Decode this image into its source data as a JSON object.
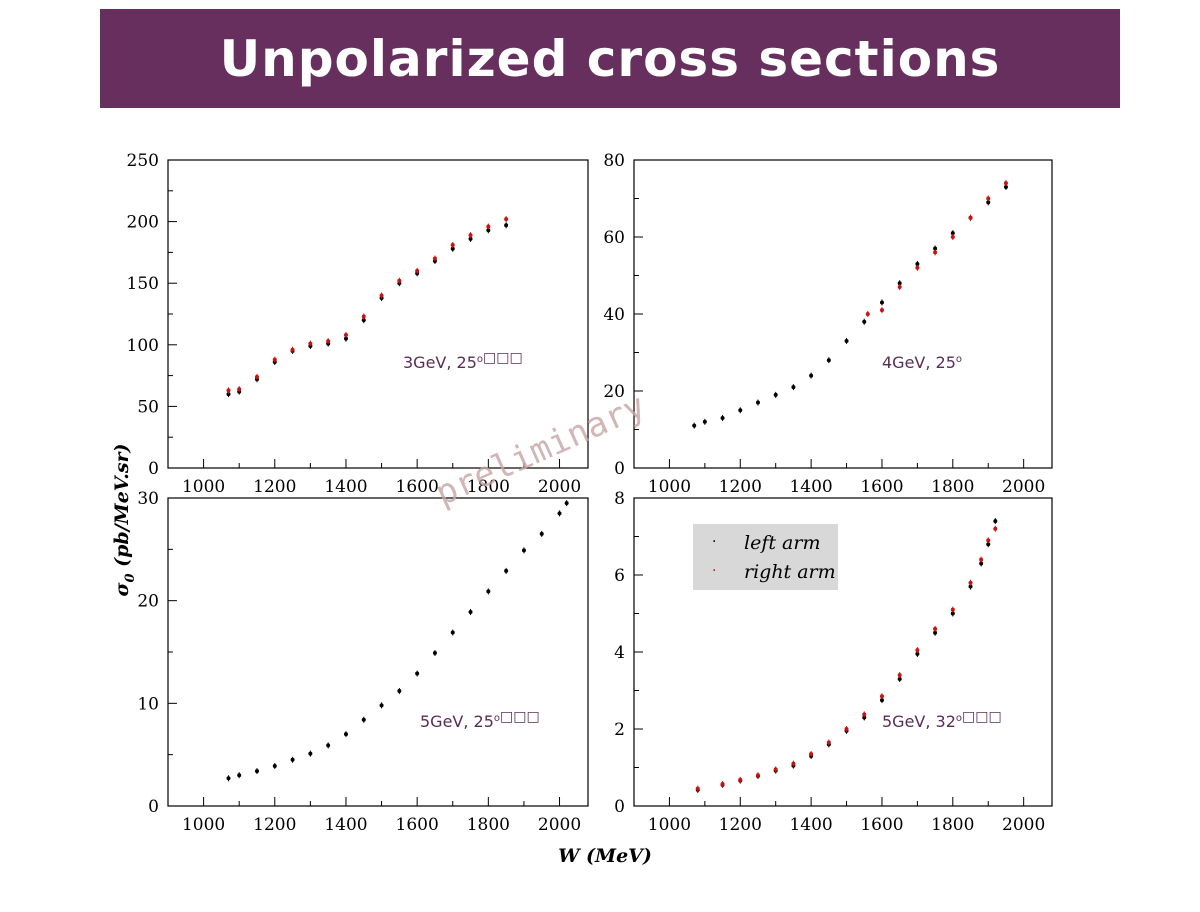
{
  "title": "Unpolarized cross sections",
  "watermark": "preliminary",
  "colors": {
    "title_bg": "#672f5e",
    "left_arm": "#000000",
    "right_arm": "#cc1111",
    "panel_label": "#5a2c57",
    "legend_bg": "#d8d8d8"
  },
  "legend": {
    "left": "left arm",
    "right": "right arm"
  },
  "axis_labels": {
    "x": "W (MeV)",
    "y_main": "σ",
    "y_sub": "0",
    "y_rest": " (pb/MeV.sr)"
  },
  "chart_data": [
    {
      "type": "scatter",
      "panel_label": {
        "main": "3GeV, 25",
        "sup": "o",
        "tail": "□□□"
      },
      "xlim": [
        900,
        2080
      ],
      "ylim": [
        0,
        250
      ],
      "x_ticks": [
        "1000",
        "1200",
        "1400",
        "1600",
        "1800",
        "2000"
      ],
      "y_ticks": [
        "0",
        "50",
        "100",
        "150",
        "200",
        "250"
      ],
      "series": [
        {
          "name": "left arm",
          "x": [
            1070,
            1100,
            1150,
            1200,
            1250,
            1300,
            1350,
            1400,
            1450,
            1500,
            1550,
            1600,
            1650,
            1700,
            1750,
            1800,
            1850
          ],
          "y": [
            60,
            62,
            72,
            86,
            95,
            99,
            101,
            105,
            120,
            138,
            150,
            158,
            168,
            178,
            186,
            193,
            197
          ]
        },
        {
          "name": "right arm",
          "x": [
            1070,
            1100,
            1150,
            1200,
            1250,
            1300,
            1350,
            1400,
            1450,
            1500,
            1550,
            1600,
            1650,
            1700,
            1750,
            1800,
            1850
          ],
          "y": [
            63,
            64,
            74,
            88,
            96,
            101,
            103,
            108,
            123,
            140,
            152,
            160,
            170,
            181,
            189,
            196,
            202
          ]
        }
      ]
    },
    {
      "type": "scatter",
      "panel_label": {
        "main": "4GeV, 25",
        "sup": "o",
        "tail": ""
      },
      "xlim": [
        900,
        2080
      ],
      "ylim": [
        0,
        80
      ],
      "x_ticks": [
        "1000",
        "1200",
        "1400",
        "1600",
        "1800",
        "2000"
      ],
      "y_ticks": [
        "0",
        "20",
        "40",
        "60",
        "80"
      ],
      "series": [
        {
          "name": "left arm",
          "x": [
            1070,
            1100,
            1150,
            1200,
            1250,
            1300,
            1350,
            1400,
            1450,
            1500,
            1550,
            1600,
            1650,
            1700,
            1750,
            1800,
            1850,
            1900,
            1950
          ],
          "y": [
            11,
            12,
            13,
            15,
            17,
            19,
            21,
            24,
            28,
            33,
            38,
            43,
            48,
            53,
            57,
            61,
            65,
            69,
            73
          ]
        },
        {
          "name": "right arm",
          "x": [
            1560,
            1600,
            1650,
            1700,
            1750,
            1800,
            1850,
            1900,
            1950
          ],
          "y": [
            40,
            41,
            47,
            52,
            56,
            60,
            65,
            70,
            74
          ]
        }
      ]
    },
    {
      "type": "scatter",
      "panel_label": {
        "main": "5GeV, 25",
        "sup": "o",
        "tail": "□□□"
      },
      "xlim": [
        900,
        2080
      ],
      "ylim": [
        0,
        30
      ],
      "x_ticks": [
        "1000",
        "1200",
        "1400",
        "1600",
        "1800",
        "2000"
      ],
      "y_ticks": [
        "0",
        "10",
        "20",
        "30"
      ],
      "series": [
        {
          "name": "left arm",
          "x": [
            1070,
            1100,
            1150,
            1200,
            1250,
            1300,
            1350,
            1400,
            1450,
            1500,
            1550,
            1600,
            1650,
            1700,
            1750,
            1800,
            1850,
            1900,
            1950,
            2000,
            2020
          ],
          "y": [
            2.7,
            3.0,
            3.4,
            3.9,
            4.5,
            5.1,
            5.9,
            7.0,
            8.4,
            9.8,
            11.2,
            12.9,
            14.9,
            16.9,
            18.9,
            20.9,
            22.9,
            24.9,
            26.5,
            28.5,
            29.5
          ]
        }
      ]
    },
    {
      "type": "scatter",
      "panel_label": {
        "main": "5GeV, 32",
        "sup": "o",
        "tail": "□□□"
      },
      "xlim": [
        900,
        2080
      ],
      "ylim": [
        0,
        8
      ],
      "x_ticks": [
        "1000",
        "1200",
        "1400",
        "1600",
        "1800",
        "2000"
      ],
      "y_ticks": [
        "0",
        "2",
        "4",
        "6",
        "8"
      ],
      "legend_position": "top-left",
      "series": [
        {
          "name": "left arm",
          "x": [
            1080,
            1150,
            1200,
            1250,
            1300,
            1350,
            1400,
            1450,
            1500,
            1550,
            1600,
            1650,
            1700,
            1750,
            1800,
            1850,
            1880,
            1900,
            1920
          ],
          "y": [
            0.42,
            0.55,
            0.66,
            0.78,
            0.92,
            1.05,
            1.3,
            1.6,
            1.95,
            2.3,
            2.75,
            3.3,
            3.95,
            4.5,
            5.0,
            5.7,
            6.3,
            6.8,
            7.4
          ]
        },
        {
          "name": "right arm",
          "x": [
            1080,
            1150,
            1200,
            1250,
            1300,
            1350,
            1400,
            1450,
            1500,
            1550,
            1600,
            1650,
            1700,
            1750,
            1800,
            1850,
            1880,
            1900,
            1920
          ],
          "y": [
            0.45,
            0.57,
            0.68,
            0.8,
            0.95,
            1.1,
            1.35,
            1.65,
            2.0,
            2.38,
            2.85,
            3.4,
            4.05,
            4.6,
            5.1,
            5.8,
            6.4,
            6.9,
            7.2
          ]
        }
      ]
    }
  ]
}
